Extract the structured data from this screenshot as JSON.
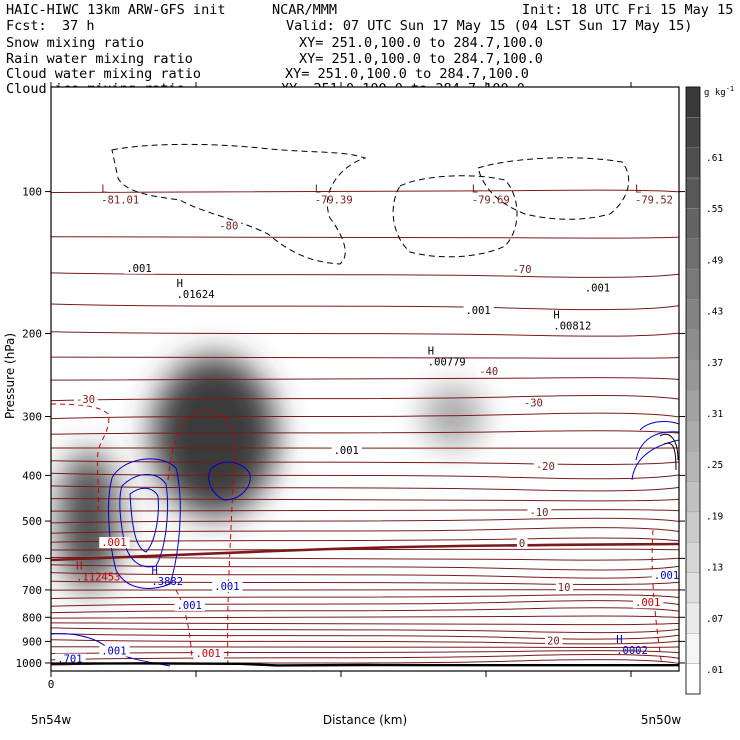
{
  "header": {
    "model": "HAIC-HIWC 13km ARW-GFS init",
    "org": "NCAR/MMM",
    "init": "Init: 18 UTC Fri 15 May 15",
    "fcst_label": "Fcst:",
    "fcst_value": "37 h",
    "valid": "Valid: 07 UTC Sun 17 May 15 (04 LST Sun 17 May 15)"
  },
  "fields": [
    {
      "name": "Snow mixing ratio",
      "color": "#000000",
      "xy": "XY= 251.0,100.0 to 284.7,100.0"
    },
    {
      "name": "Rain water mixing ratio",
      "color": "#cc0000",
      "xy": "XY= 251.0,100.0 to 284.7,100.0"
    },
    {
      "name": "Cloud water mixing ratio",
      "color": "#0000cc",
      "xy": "XY= 251.0,100.0 to 284.7,100.0"
    },
    {
      "name": "Cloud ice mixing ratio",
      "color": "#000000",
      "xy": "XY= 251.0,100.0 to 284.7,100.0"
    }
  ],
  "colors": {
    "temperature": "#7a1a1a",
    "rain": "#cc0000",
    "cloud_water": "#0000cc",
    "snow": "#000000",
    "ice_shade_max": "#3a3a3a",
    "frame": "#000000"
  },
  "chart_data": {
    "type": "heatmap",
    "xlabel": "Distance (km)",
    "ylabel": "Pressure (hPa)",
    "x_tick_labels": [
      "0"
    ],
    "x_end_labels": {
      "left": "5n54w",
      "right": "5n50w"
    },
    "y_scale": "log",
    "ylim": [
      1040,
      60
    ],
    "y_ticks": [
      100,
      200,
      300,
      400,
      500,
      600,
      700,
      800,
      900,
      1000
    ],
    "colorbar": {
      "unit": "g kg",
      "unit_exponent": "-1",
      "ticks": [
        ".01",
        ".07",
        ".13",
        ".19",
        ".25",
        ".31",
        ".37",
        ".43",
        ".49",
        ".55",
        ".61"
      ]
    },
    "temperature_contours": [
      {
        "label": "-80",
        "p": 118
      },
      {
        "label": "-70",
        "p": 146
      },
      {
        "label": "-40",
        "p": 240
      },
      {
        "label": "-30",
        "p": 280
      },
      {
        "label": "-20",
        "p": 382
      },
      {
        "label": "-10",
        "p": 478
      },
      {
        "label": "0",
        "p": 556
      },
      {
        "label": "10",
        "p": 690
      },
      {
        "label": "20",
        "p": 895
      }
    ],
    "extrema_labels": [
      {
        "type": "L",
        "value": "-81.01",
        "x": 0.08,
        "p": 106
      },
      {
        "type": "L",
        "value": "-79.39",
        "x": 0.42,
        "p": 106
      },
      {
        "type": "L",
        "value": "-79.69",
        "x": 0.67,
        "p": 106
      },
      {
        "type": "L",
        "value": "-79.52",
        "x": 0.93,
        "p": 106
      },
      {
        "type": "H",
        "value": ".01624",
        "x": 0.2,
        "p": 168
      },
      {
        "type": "H",
        "value": ".00779",
        "x": 0.6,
        "p": 234
      },
      {
        "type": "H",
        "value": ".00812",
        "x": 0.8,
        "p": 196
      },
      {
        "type": "H",
        "value": ".112453",
        "x": 0.04,
        "p": 668
      },
      {
        "type": "H",
        "value": ".3882",
        "x": 0.16,
        "p": 684
      },
      {
        "type": "H",
        "value": ".0002",
        "x": 0.9,
        "p": 958
      }
    ],
    "snow_contour_labels": [
      {
        "value": ".001",
        "x": 0.12,
        "p": 148
      },
      {
        "value": ".001",
        "x": 0.45,
        "p": 360
      },
      {
        "value": ".001",
        "x": 0.66,
        "p": 182
      },
      {
        "value": ".001",
        "x": 0.85,
        "p": 163
      }
    ],
    "rain_contour_labels": [
      {
        "value": ".001",
        "x": 0.08,
        "p": 565
      },
      {
        "value": ".001",
        "x": 0.23,
        "p": 972
      },
      {
        "value": ".001",
        "x": 0.93,
        "p": 758
      }
    ],
    "cloud_water_contour_labels": [
      {
        "value": ".001",
        "x": 0.26,
        "p": 700
      },
      {
        "value": ".001",
        "x": 0.2,
        "p": 768
      },
      {
        "value": ".001",
        "x": 0.08,
        "p": 960
      },
      {
        "value": ".701",
        "x": 0.01,
        "p": 998
      },
      {
        "value": ".001",
        "x": 0.96,
        "p": 663
      }
    ],
    "ice_blobs": [
      {
        "x": 0.26,
        "p": 330,
        "peak": 0.61
      },
      {
        "x": 0.06,
        "p": 500,
        "peak": 0.55
      },
      {
        "x": 0.64,
        "p": 300,
        "peak": 0.28
      }
    ],
    "terrain_pressure": [
      {
        "x": 0.0,
        "p": 1003
      },
      {
        "x": 0.15,
        "p": 1002
      },
      {
        "x": 0.3,
        "p": 1004
      },
      {
        "x": 0.36,
        "p": 1012
      },
      {
        "x": 0.5,
        "p": 1010
      },
      {
        "x": 0.7,
        "p": 1011
      },
      {
        "x": 1.0,
        "p": 1011
      }
    ]
  }
}
